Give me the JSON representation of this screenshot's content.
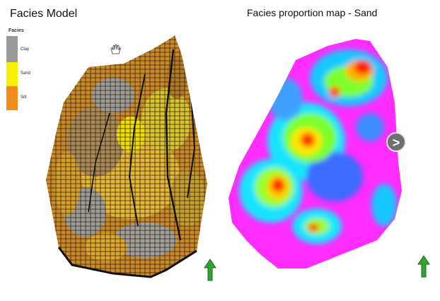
{
  "left_panel": {
    "title": "Facies Model",
    "legend": {
      "title": "Facies",
      "items": [
        {
          "label": "Clay",
          "color": "#9b9b9b"
        },
        {
          "label": "Sand",
          "color": "#f6f200"
        },
        {
          "label": "Silt",
          "color": "#f08c1a"
        }
      ]
    }
  },
  "right_panel": {
    "title": "Facies proportion map - Sand",
    "next_button": ">"
  },
  "colors": {
    "north_arrow": "#2fa52f",
    "magenta": "#ff2bff",
    "cyan": "#19e5ff",
    "green": "#7cff2a",
    "red": "#ff1a00"
  },
  "icons": [
    "hand-cursor-icon",
    "north-arrow-icon",
    "next-arrow-icon"
  ]
}
